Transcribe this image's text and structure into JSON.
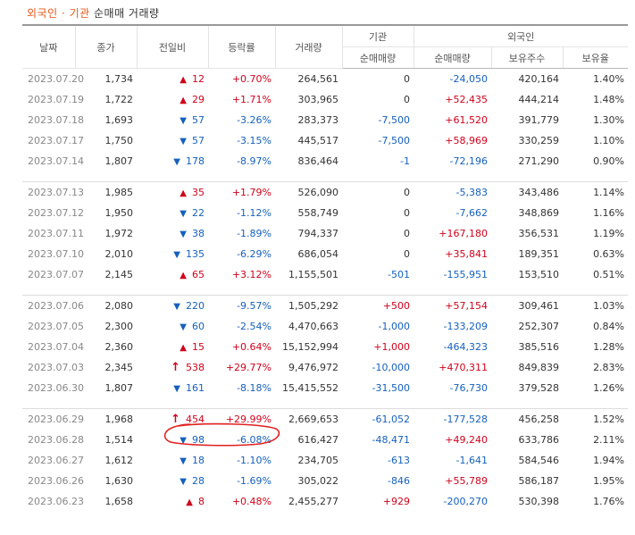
{
  "title": {
    "foreign_inst": "외국인 · 기관",
    "net_trade": "순매매 거래량"
  },
  "headers": {
    "date": "날짜",
    "close": "종가",
    "change": "전일비",
    "rate": "등락률",
    "volume": "거래량",
    "inst": "기관",
    "inst_net": "순매매량",
    "foreign": "외국인",
    "foreign_net": "순매매량",
    "foreign_holding": "보유주수",
    "foreign_ratio": "보유율"
  },
  "colors": {
    "up": "#d0021b",
    "down": "#1560bd",
    "title_accent": "#e8591a",
    "annotation": "#e02020"
  },
  "rows": [
    {
      "date": "2023.07.20",
      "close": "1,734",
      "dir": "up",
      "change": "12",
      "rate": "+0.70%",
      "volume": "264,561",
      "inst": "0",
      "foreign_net": "-24,050",
      "holding": "420,164",
      "ratio": "1.40%"
    },
    {
      "date": "2023.07.19",
      "close": "1,722",
      "dir": "up",
      "change": "29",
      "rate": "+1.71%",
      "volume": "303,965",
      "inst": "0",
      "foreign_net": "+52,435",
      "holding": "444,214",
      "ratio": "1.48%"
    },
    {
      "date": "2023.07.18",
      "close": "1,693",
      "dir": "down",
      "change": "57",
      "rate": "-3.26%",
      "volume": "283,373",
      "inst": "-7,500",
      "foreign_net": "+61,520",
      "holding": "391,779",
      "ratio": "1.30%"
    },
    {
      "date": "2023.07.17",
      "close": "1,750",
      "dir": "down",
      "change": "57",
      "rate": "-3.15%",
      "volume": "445,517",
      "inst": "-7,500",
      "foreign_net": "+58,969",
      "holding": "330,259",
      "ratio": "1.10%"
    },
    {
      "date": "2023.07.14",
      "close": "1,807",
      "dir": "down",
      "change": "178",
      "rate": "-8.97%",
      "volume": "836,464",
      "inst": "-1",
      "foreign_net": "-72,196",
      "holding": "271,290",
      "ratio": "0.90%"
    },
    {
      "date": "2023.07.13",
      "close": "1,985",
      "dir": "up",
      "change": "35",
      "rate": "+1.79%",
      "volume": "526,090",
      "inst": "0",
      "foreign_net": "-5,383",
      "holding": "343,486",
      "ratio": "1.14%"
    },
    {
      "date": "2023.07.12",
      "close": "1,950",
      "dir": "down",
      "change": "22",
      "rate": "-1.12%",
      "volume": "558,749",
      "inst": "0",
      "foreign_net": "-7,662",
      "holding": "348,869",
      "ratio": "1.16%"
    },
    {
      "date": "2023.07.11",
      "close": "1,972",
      "dir": "down",
      "change": "38",
      "rate": "-1.89%",
      "volume": "794,337",
      "inst": "0",
      "foreign_net": "+167,180",
      "holding": "356,531",
      "ratio": "1.19%"
    },
    {
      "date": "2023.07.10",
      "close": "2,010",
      "dir": "down",
      "change": "135",
      "rate": "-6.29%",
      "volume": "686,054",
      "inst": "0",
      "foreign_net": "+35,841",
      "holding": "189,351",
      "ratio": "0.63%"
    },
    {
      "date": "2023.07.07",
      "close": "2,145",
      "dir": "up",
      "change": "65",
      "rate": "+3.12%",
      "volume": "1,155,501",
      "inst": "-501",
      "foreign_net": "-155,951",
      "holding": "153,510",
      "ratio": "0.51%"
    },
    {
      "date": "2023.07.06",
      "close": "2,080",
      "dir": "down",
      "change": "220",
      "rate": "-9.57%",
      "volume": "1,505,292",
      "inst": "+500",
      "foreign_net": "+57,154",
      "holding": "309,461",
      "ratio": "1.03%"
    },
    {
      "date": "2023.07.05",
      "close": "2,300",
      "dir": "down",
      "change": "60",
      "rate": "-2.54%",
      "volume": "4,470,663",
      "inst": "-1,000",
      "foreign_net": "-133,209",
      "holding": "252,307",
      "ratio": "0.84%"
    },
    {
      "date": "2023.07.04",
      "close": "2,360",
      "dir": "up",
      "change": "15",
      "rate": "+0.64%",
      "volume": "15,152,994",
      "inst": "+1,000",
      "foreign_net": "-464,323",
      "holding": "385,516",
      "ratio": "1.28%"
    },
    {
      "date": "2023.07.03",
      "close": "2,345",
      "dir": "limit",
      "change": "538",
      "rate": "+29.77%",
      "volume": "9,476,972",
      "inst": "-10,000",
      "foreign_net": "+470,311",
      "holding": "849,839",
      "ratio": "2.83%"
    },
    {
      "date": "2023.06.30",
      "close": "1,807",
      "dir": "down",
      "change": "161",
      "rate": "-8.18%",
      "volume": "15,415,552",
      "inst": "-31,500",
      "foreign_net": "-76,730",
      "holding": "379,528",
      "ratio": "1.26%"
    },
    {
      "date": "2023.06.29",
      "close": "1,968",
      "dir": "limit",
      "change": "454",
      "rate": "+29.99%",
      "volume": "2,669,653",
      "inst": "-61,052",
      "foreign_net": "-177,528",
      "holding": "456,258",
      "ratio": "1.52%"
    },
    {
      "date": "2023.06.28",
      "close": "1,514",
      "dir": "down",
      "change": "98",
      "rate": "-6.08%",
      "volume": "616,427",
      "inst": "-48,471",
      "foreign_net": "+49,240",
      "holding": "633,786",
      "ratio": "2.11%"
    },
    {
      "date": "2023.06.27",
      "close": "1,612",
      "dir": "down",
      "change": "18",
      "rate": "-1.10%",
      "volume": "234,705",
      "inst": "-613",
      "foreign_net": "-1,641",
      "holding": "584,546",
      "ratio": "1.94%"
    },
    {
      "date": "2023.06.26",
      "close": "1,630",
      "dir": "down",
      "change": "28",
      "rate": "-1.69%",
      "volume": "305,022",
      "inst": "-846",
      "foreign_net": "+55,789",
      "holding": "586,187",
      "ratio": "1.95%"
    },
    {
      "date": "2023.06.23",
      "close": "1,658",
      "dir": "up",
      "change": "8",
      "rate": "+0.48%",
      "volume": "2,455,277",
      "inst": "+929",
      "foreign_net": "-200,270",
      "holding": "530,398",
      "ratio": "1.76%"
    }
  ]
}
